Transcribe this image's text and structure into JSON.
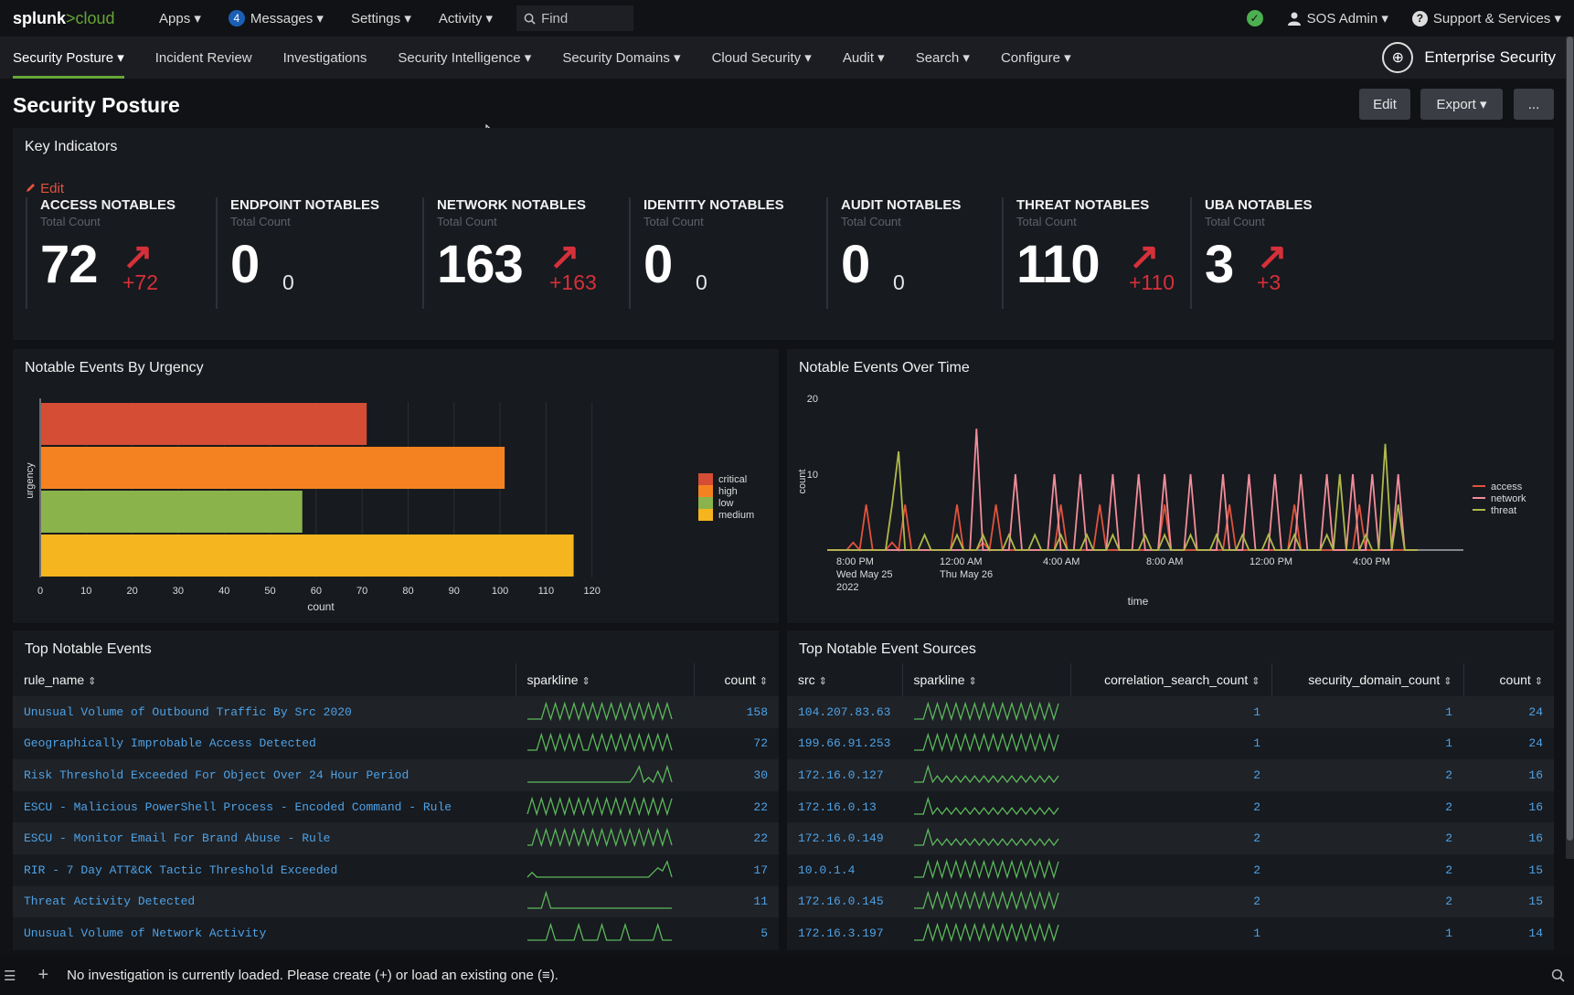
{
  "topbar": {
    "logo_main": "splunk",
    "logo_accent": ">cloud",
    "apps": "Apps ▾",
    "messages_count": "4",
    "messages": "Messages ▾",
    "settings": "Settings ▾",
    "activity": "Activity ▾",
    "find": "Find",
    "user": "SOS Admin ▾",
    "support": "Support & Services ▾"
  },
  "nav": {
    "items": [
      "Security Posture ▾",
      "Incident Review",
      "Investigations",
      "Security Intelligence ▾",
      "Security Domains ▾",
      "Cloud Security ▾",
      "Audit ▾",
      "Search ▾",
      "Configure ▾"
    ],
    "brand": "Enterprise Security"
  },
  "page": {
    "title": "Security Posture",
    "edit_button": "Edit",
    "export_button": "Export ▾",
    "more_button": "..."
  },
  "key_indicators": {
    "title": "Key Indicators",
    "edit_link": "Edit",
    "items": [
      {
        "title": "ACCESS NOTABLES",
        "sub": "Total Count",
        "value": "72",
        "delta": "+72",
        "trend": "up"
      },
      {
        "title": "ENDPOINT NOTABLES",
        "sub": "Total Count",
        "value": "0",
        "delta": "0",
        "trend": "none"
      },
      {
        "title": "NETWORK NOTABLES",
        "sub": "Total Count",
        "value": "163",
        "delta": "+163",
        "trend": "up"
      },
      {
        "title": "IDENTITY NOTABLES",
        "sub": "Total Count",
        "value": "0",
        "delta": "0",
        "trend": "none"
      },
      {
        "title": "AUDIT NOTABLES",
        "sub": "Total Count",
        "value": "0",
        "delta": "0",
        "trend": "none"
      },
      {
        "title": "THREAT NOTABLES",
        "sub": "Total Count",
        "value": "110",
        "delta": "+110",
        "trend": "up"
      },
      {
        "title": "UBA NOTABLES",
        "sub": "Total Count",
        "value": "3",
        "delta": "+3",
        "trend": "up"
      }
    ]
  },
  "chart_data": [
    {
      "type": "bar",
      "orientation": "horizontal",
      "title": "Notable Events By Urgency",
      "xlabel": "count",
      "ylabel": "urgency",
      "categories": [
        "critical",
        "high",
        "low",
        "medium"
      ],
      "values": [
        71,
        101,
        57,
        116
      ],
      "colors": [
        "#d44d34",
        "#f58220",
        "#8bb34b",
        "#f5b51e"
      ],
      "xlim": [
        0,
        130
      ],
      "xticks": [
        0,
        10,
        20,
        30,
        40,
        50,
        60,
        70,
        80,
        90,
        100,
        110,
        120
      ],
      "legend": "right"
    },
    {
      "type": "line",
      "title": "Notable Events Over Time",
      "xlabel": "time",
      "ylabel": "count",
      "ylim": [
        0,
        20
      ],
      "yticks": [
        10,
        20
      ],
      "xtick_labels": [
        [
          "8:00 PM",
          "Wed May 25",
          "2022"
        ],
        [
          "12:00 AM",
          "Thu May 26"
        ],
        [
          "4:00 AM"
        ],
        [
          "8:00 AM"
        ],
        [
          "12:00 PM"
        ],
        [
          "4:00 PM"
        ]
      ],
      "legend": "right",
      "series": [
        {
          "name": "access",
          "color": "#e0533d",
          "values": [
            0,
            0,
            0,
            0,
            1,
            0,
            6,
            0,
            0,
            0,
            1,
            0,
            6,
            0,
            0,
            0,
            0,
            0,
            0,
            0,
            6,
            0,
            0,
            0,
            1,
            0,
            6,
            0,
            0,
            0,
            0,
            0,
            0,
            0,
            0,
            0,
            6,
            0,
            0,
            0,
            0,
            0,
            6,
            0,
            0,
            0,
            0,
            0,
            0,
            0,
            0,
            0,
            6,
            0,
            0,
            0,
            0,
            0,
            0,
            0,
            0,
            0,
            6,
            0,
            0,
            0,
            0,
            0,
            0,
            0,
            0,
            0,
            6,
            0,
            0,
            0,
            0,
            0,
            0,
            0,
            0,
            0,
            6,
            0,
            0,
            0,
            0,
            0,
            0,
            0,
            0,
            0
          ]
        },
        {
          "name": "network",
          "color": "#f28d9a",
          "values": [
            0,
            0,
            0,
            0,
            0,
            0,
            0,
            0,
            0,
            0,
            0,
            0,
            0,
            0,
            0,
            0,
            0,
            0,
            0,
            0,
            0,
            0,
            0,
            16,
            0,
            0,
            0,
            0,
            0,
            10,
            0,
            0,
            0,
            0,
            0,
            10,
            0,
            0,
            0,
            10,
            0,
            0,
            0,
            0,
            10,
            0,
            0,
            0,
            10,
            0,
            0,
            0,
            10,
            0,
            0,
            0,
            10,
            0,
            0,
            0,
            0,
            10,
            0,
            0,
            0,
            10,
            0,
            0,
            0,
            10,
            0,
            0,
            0,
            10,
            0,
            0,
            0,
            10,
            0,
            0,
            0,
            10,
            0,
            0,
            10,
            0,
            0,
            0,
            10,
            0,
            0,
            0
          ]
        },
        {
          "name": "threat",
          "color": "#b0b84a",
          "values": [
            0,
            0,
            0,
            0,
            0,
            0,
            0,
            0,
            0,
            0,
            6,
            13,
            0,
            0,
            0,
            2,
            0,
            0,
            0,
            0,
            2,
            0,
            0,
            0,
            2,
            0,
            0,
            0,
            2,
            0,
            0,
            0,
            2,
            0,
            0,
            0,
            2,
            0,
            0,
            0,
            2,
            0,
            0,
            0,
            2,
            0,
            0,
            0,
            0,
            2,
            0,
            0,
            2,
            0,
            0,
            0,
            2,
            0,
            0,
            0,
            2,
            0,
            0,
            0,
            2,
            0,
            0,
            0,
            2,
            0,
            0,
            0,
            2,
            0,
            0,
            0,
            0,
            2,
            0,
            10,
            0,
            0,
            0,
            2,
            0,
            0,
            14,
            0,
            6,
            0,
            0,
            0
          ]
        }
      ]
    }
  ],
  "top_notable_events": {
    "title": "Top Notable Events",
    "columns": [
      "rule_name",
      "sparkline",
      "count"
    ],
    "rows": [
      {
        "rule_name": "Unusual Volume of Outbound Traffic By Src 2020",
        "count": "158",
        "spark": [
          0,
          0,
          0,
          0,
          1,
          0,
          1,
          0,
          1,
          0,
          1,
          0,
          1,
          0,
          1,
          0,
          1,
          0,
          1,
          0,
          1,
          0,
          1,
          0,
          1,
          0,
          1,
          0,
          1,
          0,
          1,
          0
        ]
      },
      {
        "rule_name": "Geographically Improbable Access Detected",
        "count": "72",
        "spark": [
          0,
          0,
          0,
          1,
          0,
          1,
          0,
          1,
          0,
          1,
          0,
          1,
          0,
          0,
          1,
          0,
          1,
          0,
          1,
          0,
          1,
          0,
          1,
          0,
          1,
          0,
          1,
          0,
          1,
          0,
          1,
          0
        ]
      },
      {
        "rule_name": "Risk Threshold Exceeded For Object Over 24 Hour Period",
        "count": "30",
        "spark": [
          0,
          0,
          0,
          0,
          0,
          0,
          0,
          0,
          0,
          0,
          0,
          0,
          0,
          0,
          0,
          0,
          0,
          0,
          0,
          0,
          0,
          0,
          0,
          0.4,
          1,
          0,
          0.3,
          0,
          0.7,
          0,
          1,
          0
        ]
      },
      {
        "rule_name": "ESCU - Malicious PowerShell Process - Encoded Command - Rule",
        "count": "22",
        "spark": [
          0,
          1,
          0,
          1,
          0,
          1,
          0,
          1,
          0,
          1,
          0,
          1,
          0,
          1,
          0,
          1,
          0,
          1,
          0,
          1,
          0,
          1,
          0,
          1,
          0,
          1,
          0,
          1,
          0,
          1,
          0,
          1
        ]
      },
      {
        "rule_name": "ESCU - Monitor Email For Brand Abuse - Rule",
        "count": "22",
        "spark": [
          0,
          0,
          1,
          0,
          1,
          0,
          1,
          0,
          1,
          0,
          1,
          0,
          1,
          0,
          1,
          0,
          1,
          0,
          1,
          0,
          1,
          0,
          1,
          0,
          1,
          0,
          1,
          0,
          1,
          0,
          1,
          0
        ]
      },
      {
        "rule_name": "RIR - 7 Day ATT&CK Tactic Threshold Exceeded",
        "count": "17",
        "spark": [
          0,
          0.3,
          0,
          0,
          0,
          0,
          0,
          0,
          0,
          0,
          0,
          0,
          0,
          0,
          0,
          0,
          0,
          0,
          0,
          0,
          0,
          0,
          0,
          0,
          0,
          0,
          0,
          0.3,
          0.6,
          0.4,
          1,
          0
        ]
      },
      {
        "rule_name": "Threat Activity Detected",
        "count": "11",
        "spark": [
          0,
          0,
          0,
          0,
          1,
          0,
          0,
          0,
          0,
          0,
          0,
          0,
          0,
          0,
          0,
          0,
          0,
          0,
          0,
          0,
          0,
          0,
          0,
          0,
          0,
          0,
          0,
          0,
          0,
          0,
          0,
          0
        ]
      },
      {
        "rule_name": "Unusual Volume of Network Activity",
        "count": "5",
        "spark": [
          0,
          0,
          0,
          0,
          0,
          1,
          0,
          0,
          0,
          0,
          0,
          1,
          0,
          0,
          0,
          0,
          1,
          0,
          0,
          0,
          0,
          1,
          0,
          0,
          0,
          0,
          0,
          0,
          1,
          0,
          0,
          0
        ]
      }
    ]
  },
  "top_notable_event_sources": {
    "title": "Top Notable Event Sources",
    "columns": [
      "src",
      "sparkline",
      "correlation_search_count",
      "security_domain_count",
      "count"
    ],
    "rows": [
      {
        "src": "104.207.83.63",
        "csc": "1",
        "sdc": "1",
        "count": "24",
        "spark": [
          0,
          0,
          0,
          1,
          0,
          1,
          0,
          1,
          0,
          1,
          0,
          1,
          0,
          1,
          0,
          1,
          0,
          1,
          0,
          1,
          0,
          1,
          0,
          1,
          0,
          1,
          0,
          1,
          0,
          1,
          0,
          1
        ]
      },
      {
        "src": "199.66.91.253",
        "csc": "1",
        "sdc": "1",
        "count": "24",
        "spark": [
          0,
          0,
          0,
          1,
          0,
          1,
          0,
          1,
          0,
          1,
          0,
          1,
          0,
          1,
          0,
          1,
          0,
          1,
          0,
          1,
          0,
          1,
          0,
          1,
          0,
          1,
          0,
          1,
          0,
          1,
          0,
          1
        ]
      },
      {
        "src": "172.16.0.127",
        "csc": "2",
        "sdc": "2",
        "count": "16",
        "spark": [
          0,
          0,
          0,
          1,
          0,
          0.4,
          0,
          0.4,
          0,
          0.4,
          0,
          0.4,
          0,
          0.4,
          0,
          0.4,
          0,
          0.4,
          0,
          0.4,
          0,
          0.4,
          0,
          0.4,
          0,
          0.4,
          0,
          0.4,
          0,
          0.4,
          0,
          0.4
        ]
      },
      {
        "src": "172.16.0.13",
        "csc": "2",
        "sdc": "2",
        "count": "16",
        "spark": [
          0,
          0,
          0,
          1,
          0,
          0.4,
          0,
          0.4,
          0,
          0.4,
          0,
          0.4,
          0,
          0.4,
          0,
          0.4,
          0,
          0.4,
          0,
          0.4,
          0,
          0.4,
          0,
          0.4,
          0,
          0.4,
          0,
          0.4,
          0,
          0.4,
          0,
          0.4
        ]
      },
      {
        "src": "172.16.0.149",
        "csc": "2",
        "sdc": "2",
        "count": "16",
        "spark": [
          0,
          0,
          0,
          1,
          0,
          0.4,
          0,
          0.4,
          0,
          0.4,
          0,
          0.4,
          0,
          0.4,
          0,
          0.4,
          0,
          0.4,
          0,
          0.4,
          0,
          0.4,
          0,
          0.4,
          0,
          0.4,
          0,
          0.4,
          0,
          0.4,
          0,
          0.4
        ]
      },
      {
        "src": "10.0.1.4",
        "csc": "2",
        "sdc": "2",
        "count": "15",
        "spark": [
          0,
          0,
          0,
          1,
          0,
          1,
          0,
          1,
          0,
          1,
          0,
          1,
          0,
          1,
          0,
          1,
          0,
          1,
          0,
          1,
          0,
          1,
          0,
          1,
          0,
          1,
          0,
          1,
          0,
          1,
          0,
          1
        ]
      },
      {
        "src": "172.16.0.145",
        "csc": "2",
        "sdc": "2",
        "count": "15",
        "spark": [
          0,
          0,
          0,
          1,
          0,
          1,
          0,
          1,
          0,
          1,
          0,
          1,
          0,
          1,
          0,
          1,
          0,
          1,
          0,
          1,
          0,
          1,
          0,
          1,
          0,
          1,
          0,
          1,
          0,
          1,
          0,
          1
        ]
      },
      {
        "src": "172.16.3.197",
        "csc": "1",
        "sdc": "1",
        "count": "14",
        "spark": [
          0,
          0,
          0,
          1,
          0,
          1,
          0,
          1,
          0,
          1,
          0,
          1,
          0,
          1,
          0,
          1,
          0,
          1,
          0,
          1,
          0,
          1,
          0,
          1,
          0,
          1,
          0,
          1,
          0,
          1,
          0,
          1
        ]
      }
    ]
  },
  "footer": {
    "message": "No investigation is currently loaded. Please create (+) or load an existing one (≡)."
  },
  "colors": {
    "accent_green": "#65a637",
    "delta_red": "#d6303a",
    "link_blue": "#4ea2e6",
    "sparkline_green": "#5cb85c"
  }
}
